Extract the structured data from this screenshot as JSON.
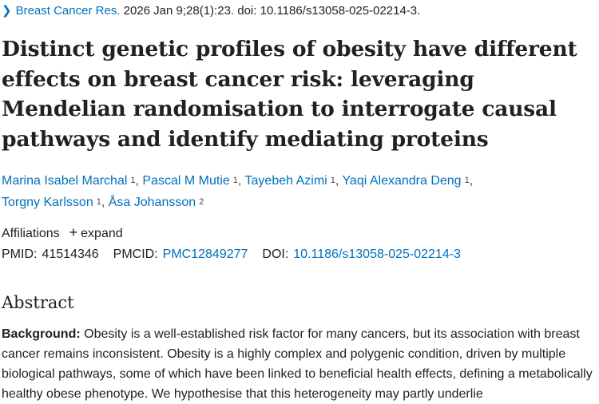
{
  "citation": {
    "journal": "Breast Cancer Res.",
    "details": "2026 Jan 9;28(1):23. doi: 10.1186/s13058-025-02214-3."
  },
  "title": "Distinct genetic profiles of obesity have different effects on breast cancer risk: leveraging Mendelian randomisation to interrogate causal pathways and identify mediating proteins",
  "authors": [
    {
      "name": "Marina Isabel Marchal",
      "sup": "1"
    },
    {
      "name": "Pascal M Mutie",
      "sup": "1"
    },
    {
      "name": "Tayebeh Azimi",
      "sup": "1"
    },
    {
      "name": "Yaqi Alexandra Deng",
      "sup": "1"
    },
    {
      "name": "Torgny Karlsson",
      "sup": "1"
    },
    {
      "name": "Åsa Johansson",
      "sup": "2"
    }
  ],
  "affiliations": {
    "label": "Affiliations",
    "expand": "expand"
  },
  "ids": {
    "pmid_label": "PMID:",
    "pmid": "41514346",
    "pmcid_label": "PMCID:",
    "pmcid": "PMC12849277",
    "doi_label": "DOI:",
    "doi": "10.1186/s13058-025-02214-3"
  },
  "abstract": {
    "heading": "Abstract",
    "background_label": "Background:",
    "background_text": "Obesity is a well-established risk factor for many cancers, but its association with breast cancer remains inconsistent. Obesity is a highly complex and polygenic condition, driven by multiple biological pathways, some of which have been linked to beneficial health effects, defining a metabolically healthy obese phenotype. We hypothesise that this heterogeneity may partly underlie"
  }
}
